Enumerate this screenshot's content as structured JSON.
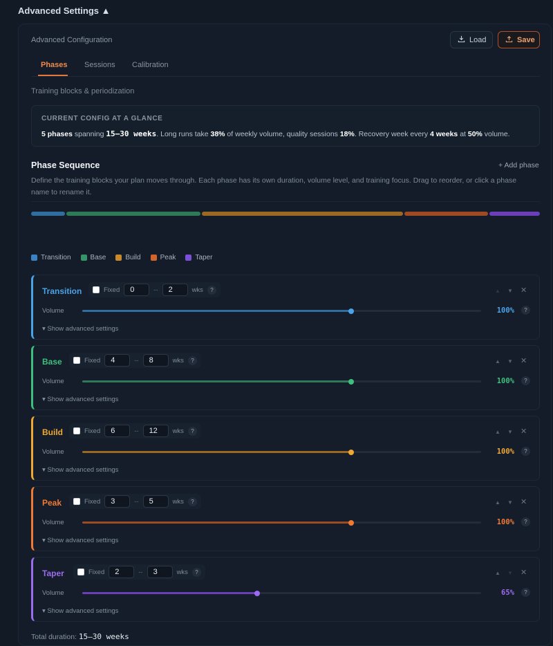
{
  "header": {
    "section_title": "Advanced Settings ▲"
  },
  "config": {
    "title": "Advanced Configuration",
    "load_label": "Load",
    "save_label": "Save",
    "tabs": [
      {
        "label": "Phases",
        "active": true
      },
      {
        "label": "Sessions",
        "active": false
      },
      {
        "label": "Calibration",
        "active": false
      }
    ],
    "subtitle": "Training blocks & periodization"
  },
  "glance": {
    "title": "CURRENT CONFIG AT A GLANCE",
    "phases": "5 phases",
    "spanning": " spanning ",
    "weeks": "15–30 weeks",
    "long_runs_text": ". Long runs take ",
    "long_runs_pct": "38%",
    "quality_text": " of weekly volume, quality sessions ",
    "quality_pct": "18%",
    "recovery_text": ". Recovery week every ",
    "recovery_weeks": "4 weeks",
    "at_text": " at ",
    "recovery_pct": "50%",
    "volume_text": " volume."
  },
  "sequence": {
    "title": "Phase Sequence",
    "add_label": "+ Add phase",
    "description": "Define the training blocks your plan moves through. Each phase has its own duration, volume level, and training focus. Drag to reorder, or click a phase name to rename it."
  },
  "timeline": [
    {
      "phase": "Transition",
      "color": "#2f6e9e",
      "weight": 2
    },
    {
      "phase": "Base",
      "color": "#2e7a57",
      "weight": 8
    },
    {
      "phase": "Build",
      "color": "#9a6a25",
      "weight": 12
    },
    {
      "phase": "Peak",
      "color": "#9e4a23",
      "weight": 5
    },
    {
      "phase": "Taper",
      "color": "#6a3fb8",
      "weight": 3
    }
  ],
  "legend": [
    {
      "label": "Transition",
      "color": "#3b82c4"
    },
    {
      "label": "Base",
      "color": "#35946a"
    },
    {
      "label": "Build",
      "color": "#c98a2c"
    },
    {
      "label": "Peak",
      "color": "#d0642c"
    },
    {
      "label": "Taper",
      "color": "#7c4fd8"
    }
  ],
  "labels": {
    "fixed": "Fixed",
    "dash": "--",
    "wks": "wks",
    "help": "?",
    "volume": "Volume",
    "show_advanced": "▾ Show advanced settings",
    "up": "▲",
    "down": "▼",
    "close": "✕"
  },
  "phases": [
    {
      "name": "Transition",
      "min": "0",
      "max": "2",
      "volume_pct": 100,
      "volume_text": "100%",
      "color": "#4aa3e8",
      "track_color": "#2f6e9e"
    },
    {
      "name": "Base",
      "min": "4",
      "max": "8",
      "volume_pct": 100,
      "volume_text": "100%",
      "color": "#3fbf7f",
      "track_color": "#2e7a57"
    },
    {
      "name": "Build",
      "min": "6",
      "max": "12",
      "volume_pct": 100,
      "volume_text": "100%",
      "color": "#f0a832",
      "track_color": "#9a6a25"
    },
    {
      "name": "Peak",
      "min": "3",
      "max": "5",
      "volume_pct": 100,
      "volume_text": "100%",
      "color": "#f07a35",
      "track_color": "#9e4a23"
    },
    {
      "name": "Taper",
      "min": "2",
      "max": "3",
      "volume_pct": 65,
      "volume_text": "65%",
      "color": "#9b6cf0",
      "track_color": "#6a3fb8"
    }
  ],
  "total": {
    "label": "Total duration: ",
    "value": "15–30 weeks"
  }
}
